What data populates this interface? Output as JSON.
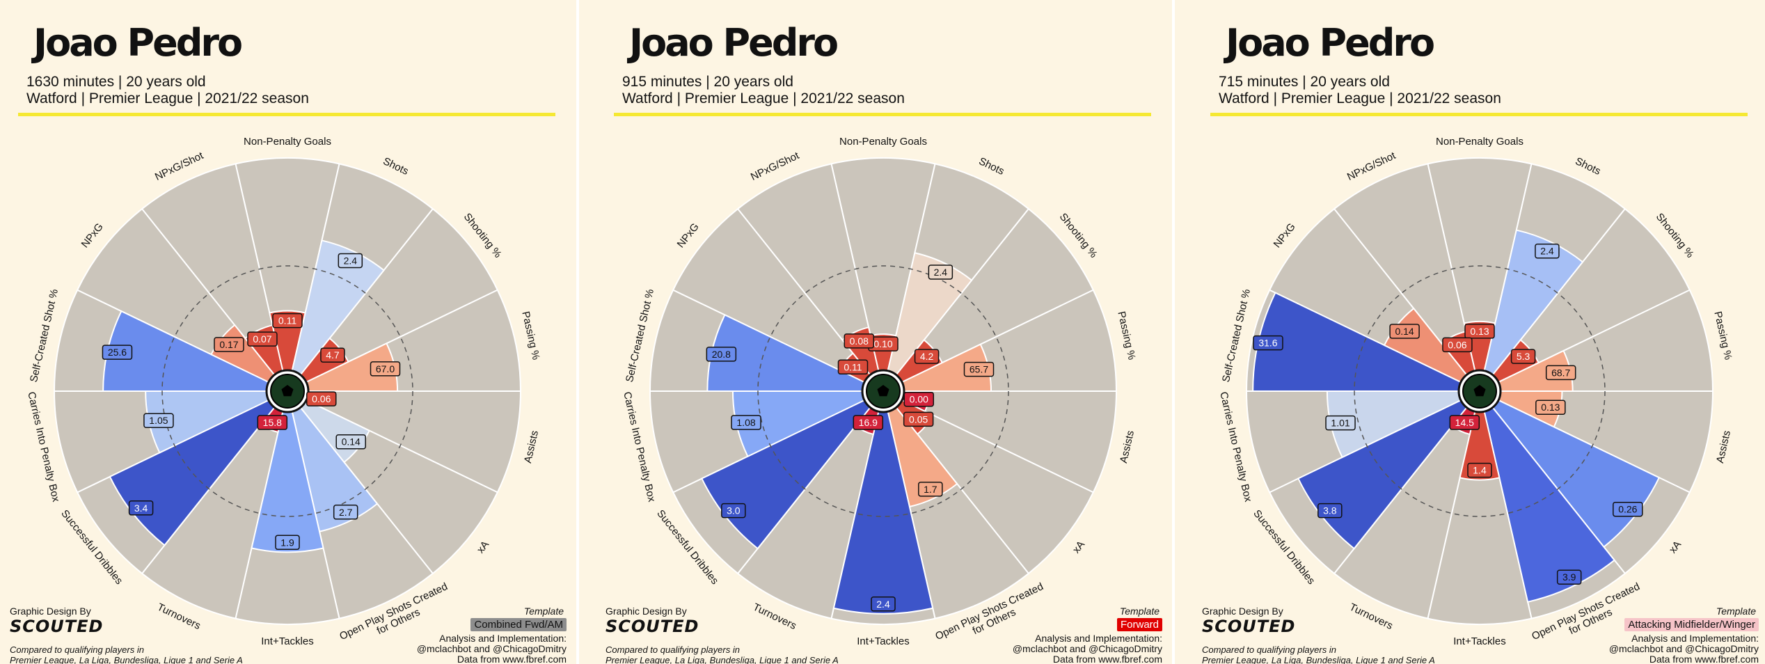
{
  "common": {
    "player_name": "Joao Pedro",
    "club_line": "Watford | Premier League | 2021/22 season",
    "credit_label": "Graphic Design By",
    "brand": "SCOUTED",
    "compared_line1": "Compared to qualifying players in",
    "compared_line2": "Premier League, La Liga, Bundesliga, Ligue 1 and Serie A",
    "template_label": "Template",
    "analysis_line1": "Analysis and Implementation:",
    "analysis_line2": "@mclachbot and @ChicagoDmitry",
    "analysis_line3": "Data from www.fbref.com"
  },
  "panels": [
    {
      "minutes_line": "1630 minutes | 20 years old",
      "template": "Combined Fwd/AM",
      "template_color": "#8d8d8d",
      "template_text_color": "#111111"
    },
    {
      "minutes_line": "915 minutes | 20 years old",
      "template": "Forward",
      "template_color": "#e00000",
      "template_text_color": "#ffffff"
    },
    {
      "minutes_line": "715 minutes | 20 years old",
      "template": "Attacking Midfielder/Winger",
      "template_color": "#f6c4c8",
      "template_text_color": "#111111"
    }
  ],
  "chart_data": [
    {
      "type": "polar-bar",
      "categories": [
        "Non-Penalty Goals",
        "Shots",
        "Shooting %",
        "Passing %",
        "Assists",
        "xA",
        "Open Play Shots Created\nfor Others",
        "Int+Tackles",
        "Turnovers",
        "Successful Dribbles",
        "Carries Into Penalty Box",
        "Self-Created Shot %",
        "NPxG",
        "NPxG/Shot"
      ],
      "percentiles": [
        28,
        63,
        22,
        42,
        3,
        33,
        58,
        66,
        10,
        83,
        57,
        77,
        30,
        22
      ],
      "labels": [
        "0.11",
        "2.4",
        "4.7",
        "67.0",
        "0.06",
        "0.14",
        "2.7",
        "1.9",
        "15.8",
        "3.4",
        "1.05",
        "25.6",
        "0.17",
        "0.07"
      ],
      "colors": [
        "#d84a3a",
        "#c5d5f2",
        "#d84a3a",
        "#f4a988",
        "#d84a3a",
        "#cdd9ea",
        "#a9c2f4",
        "#86a8f6",
        "#d3223a",
        "#3d55c9",
        "#aec6f3",
        "#6a8ced",
        "#ee9074",
        "#d84a3a"
      ]
    },
    {
      "type": "polar-bar",
      "categories": [
        "Non-Penalty Goals",
        "Shots",
        "Shooting %",
        "Passing %",
        "Assists",
        "xA",
        "Open Play Shots Created\nfor Others",
        "Int+Tackles",
        "Turnovers",
        "Successful Dribbles",
        "Carries Into Penalty Box",
        "Self-Created Shot %",
        "NPxG",
        "NPxG/Shot"
      ],
      "percentiles": [
        17,
        57,
        21,
        41,
        12,
        16,
        46,
        95,
        11,
        85,
        61,
        73,
        13,
        21
      ],
      "labels": [
        "0.10",
        "2.4",
        "4.2",
        "65.7",
        "0.00",
        "0.05",
        "1.7",
        "2.4",
        "16.9",
        "3.0",
        "1.08",
        "20.8",
        "0.11",
        "0.08"
      ],
      "colors": [
        "#d84a3a",
        "#ecd8c9",
        "#d84a3a",
        "#f4a988",
        "#d3223a",
        "#d84a3a",
        "#f4a988",
        "#3d55c9",
        "#d3223a",
        "#3d55c9",
        "#86a8f6",
        "#6a8ced",
        "#d84a3a",
        "#d84a3a"
      ]
    },
    {
      "type": "polar-bar",
      "categories": [
        "Non-Penalty Goals",
        "Shots",
        "Shooting %",
        "Passing %",
        "Assists",
        "xA",
        "Open Play Shots Created\nfor Others",
        "Int+Tackles",
        "Turnovers",
        "Successful Dribbles",
        "Carries Into Penalty Box",
        "Self-Created Shot %",
        "NPxG",
        "NPxG/Shot"
      ],
      "percentiles": [
        23,
        68,
        21,
        34,
        29,
        84,
        92,
        32,
        11,
        85,
        62,
        97,
        40,
        19
      ],
      "labels": [
        "0.13",
        "2.4",
        "5.3",
        "68.7",
        "0.13",
        "0.26",
        "3.9",
        "1.4",
        "14.5",
        "3.8",
        "1.01",
        "31.6",
        "0.14",
        "0.06"
      ],
      "colors": [
        "#d84a3a",
        "#a6bff5",
        "#d84a3a",
        "#f4a988",
        "#f4a988",
        "#6a8ced",
        "#4c67dd",
        "#d84a3a",
        "#d3223a",
        "#3d55c9",
        "#c9d6ec",
        "#3d55c9",
        "#ee9074",
        "#d84a3a"
      ]
    }
  ]
}
